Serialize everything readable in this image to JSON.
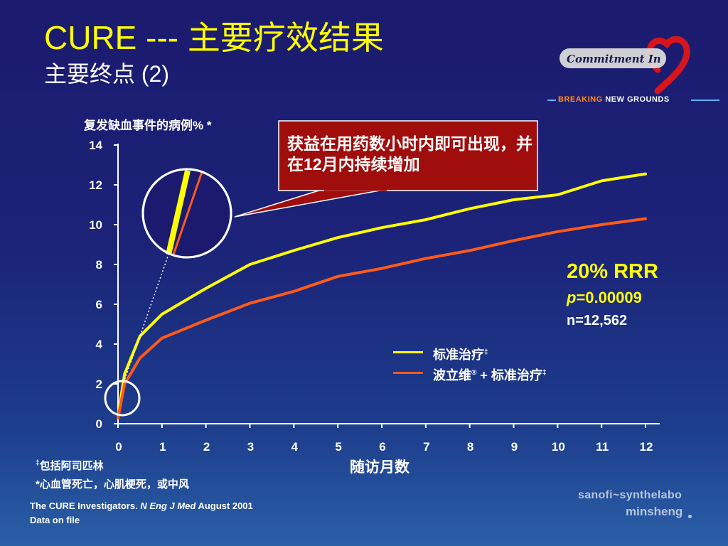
{
  "title": "CURE --- 主要疗效结果",
  "subtitle": "主要终点 (2)",
  "logo": {
    "text": "Commitment In",
    "icon": "heart-icon"
  },
  "breaking": {
    "left": "BREAKING",
    "right": "NEW GROUNDS"
  },
  "callout": "获益在用药数小时内即可出现，并在12月内持续增加",
  "stats": {
    "rrr": "20% RRR",
    "p_italic": "p",
    "p_value": "=0.00009",
    "n": "n=12,562"
  },
  "legend": {
    "item1": "标准治疗",
    "item1_sup": "‡",
    "item2_a": "波立维",
    "item2_reg": "®",
    "item2_b": " + 标准治疗",
    "item2_sup": "‡"
  },
  "footnotes": {
    "fn1_mark": "‡",
    "fn1": "包括阿司匹林",
    "fn2": "*心血管死亡，心肌梗死，或中风"
  },
  "source": {
    "line1_a": "The CURE Investigators. ",
    "line1_b": "N Eng J Med",
    "line1_c": " August 2001",
    "line2": "Data on file"
  },
  "company": {
    "line1": "sanofi~synthelabo",
    "line2": "minsheng"
  },
  "colors": {
    "standard": "#ffff00",
    "plavix": "#ff5a1a",
    "callout_bg": "#a00d0d"
  },
  "chart_data": {
    "type": "line",
    "ylabel": "复发缺血事件的病例% *",
    "xlabel": "随访月数",
    "xlim": [
      0,
      12
    ],
    "ylim": [
      0,
      14
    ],
    "xticks": [
      0,
      1,
      2,
      3,
      4,
      5,
      6,
      7,
      8,
      9,
      10,
      11,
      12
    ],
    "yticks": [
      0,
      2,
      4,
      6,
      8,
      10,
      12,
      14
    ],
    "series": [
      {
        "name": "标准治疗‡",
        "color": "#ffff00",
        "x": [
          0,
          0.15,
          0.5,
          1,
          2,
          3,
          4,
          5,
          6,
          7,
          8,
          9,
          10,
          11,
          12
        ],
        "y": [
          0.4,
          2.5,
          4.4,
          5.5,
          6.8,
          8.0,
          8.7,
          9.35,
          9.85,
          10.25,
          10.8,
          11.25,
          11.5,
          12.2,
          12.55
        ]
      },
      {
        "name": "波立维® + 标准治疗‡",
        "color": "#ff5a1a",
        "x": [
          0,
          0.15,
          0.5,
          1,
          2,
          3,
          4,
          5,
          6,
          7,
          8,
          9,
          10,
          11,
          12
        ],
        "y": [
          0.3,
          2.0,
          3.3,
          4.3,
          5.2,
          6.05,
          6.65,
          7.4,
          7.8,
          8.3,
          8.7,
          9.2,
          9.65,
          10.0,
          10.3
        ]
      }
    ],
    "annotations": [
      "获益在用药数小时内即可出现，并在12月内持续增加",
      "20% RRR",
      "p=0.00009",
      "n=12,562"
    ]
  }
}
